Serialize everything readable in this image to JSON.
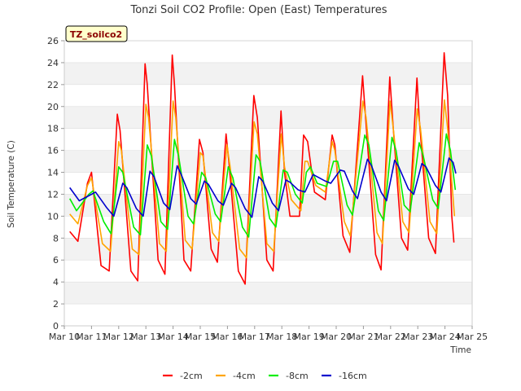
{
  "chart_data": {
    "type": "line",
    "title": "Tonzi Soil CO2 Profile: Open (East) Temperatures",
    "xlabel": "Time",
    "ylabel": "Soil Temperature (C)",
    "badge": "TZ_soilco2",
    "xlim": [
      10,
      25
    ],
    "ylim": [
      0,
      26
    ],
    "x_ticks": [
      10,
      11,
      12,
      13,
      14,
      15,
      16,
      17,
      18,
      19,
      20,
      21,
      22,
      23,
      24,
      25
    ],
    "x_tick_labels": [
      "Mar 10",
      "Mar 11",
      "Mar 12",
      "Mar 13",
      "Mar 14",
      "Mar 15",
      "Mar 16",
      "Mar 17",
      "Mar 18",
      "Mar 19",
      "Mar 20",
      "Mar 21",
      "Mar 22",
      "Mar 23",
      "Mar 24",
      "Mar 25"
    ],
    "y_ticks": [
      0,
      2,
      4,
      6,
      8,
      10,
      12,
      14,
      16,
      18,
      20,
      22,
      24,
      26
    ],
    "grid": "horizontal alternating bands",
    "legend_position": "bottom",
    "series": [
      {
        "name": "-2cm",
        "color": "#ff0000",
        "points": [
          [
            10.2,
            8.6
          ],
          [
            10.5,
            7.7
          ],
          [
            10.85,
            13.0
          ],
          [
            11.0,
            14.0
          ],
          [
            11.35,
            5.5
          ],
          [
            11.65,
            5.0
          ],
          [
            11.95,
            19.3
          ],
          [
            12.05,
            17.8
          ],
          [
            12.45,
            5.0
          ],
          [
            12.7,
            4.1
          ],
          [
            12.97,
            23.9
          ],
          [
            13.05,
            22.0
          ],
          [
            13.45,
            6.0
          ],
          [
            13.7,
            4.7
          ],
          [
            13.97,
            24.7
          ],
          [
            14.05,
            22.0
          ],
          [
            14.4,
            6.0
          ],
          [
            14.65,
            5.0
          ],
          [
            14.97,
            17.0
          ],
          [
            15.1,
            15.8
          ],
          [
            15.4,
            7.0
          ],
          [
            15.63,
            5.8
          ],
          [
            15.95,
            17.5
          ],
          [
            16.05,
            15.0
          ],
          [
            16.4,
            5.0
          ],
          [
            16.65,
            3.8
          ],
          [
            16.97,
            21.0
          ],
          [
            17.1,
            19.0
          ],
          [
            17.45,
            6.0
          ],
          [
            17.68,
            5.0
          ],
          [
            17.97,
            19.6
          ],
          [
            18.1,
            14.0
          ],
          [
            18.3,
            10.0
          ],
          [
            18.65,
            10.0
          ],
          [
            18.8,
            17.4
          ],
          [
            18.95,
            16.8
          ],
          [
            19.2,
            12.2
          ],
          [
            19.6,
            11.5
          ],
          [
            19.85,
            17.4
          ],
          [
            19.95,
            16.5
          ],
          [
            20.25,
            8.2
          ],
          [
            20.5,
            6.7
          ],
          [
            20.97,
            22.8
          ],
          [
            21.05,
            20.0
          ],
          [
            21.45,
            6.5
          ],
          [
            21.65,
            5.1
          ],
          [
            21.97,
            22.7
          ],
          [
            22.1,
            18.0
          ],
          [
            22.4,
            8.0
          ],
          [
            22.63,
            6.9
          ],
          [
            22.97,
            22.6
          ],
          [
            23.05,
            19.0
          ],
          [
            23.4,
            8.0
          ],
          [
            23.65,
            6.6
          ],
          [
            23.97,
            24.9
          ],
          [
            24.1,
            21.0
          ],
          [
            24.25,
            10.0
          ],
          [
            24.33,
            7.6
          ]
        ]
      },
      {
        "name": "-4cm",
        "color": "#ffa500",
        "points": [
          [
            10.2,
            10.2
          ],
          [
            10.5,
            9.3
          ],
          [
            10.85,
            12.8
          ],
          [
            11.0,
            13.5
          ],
          [
            11.4,
            7.5
          ],
          [
            11.7,
            6.8
          ],
          [
            12.0,
            16.8
          ],
          [
            12.1,
            16.0
          ],
          [
            12.5,
            7.0
          ],
          [
            12.75,
            6.5
          ],
          [
            13.0,
            20.2
          ],
          [
            13.1,
            19.0
          ],
          [
            13.5,
            7.5
          ],
          [
            13.75,
            6.8
          ],
          [
            14.0,
            20.5
          ],
          [
            14.1,
            19.0
          ],
          [
            14.45,
            7.8
          ],
          [
            14.7,
            7.0
          ],
          [
            15.0,
            15.8
          ],
          [
            15.1,
            15.5
          ],
          [
            15.45,
            8.5
          ],
          [
            15.68,
            7.7
          ],
          [
            15.98,
            16.5
          ],
          [
            16.1,
            14.5
          ],
          [
            16.45,
            7.0
          ],
          [
            16.7,
            6.2
          ],
          [
            16.98,
            18.6
          ],
          [
            17.1,
            17.5
          ],
          [
            17.45,
            7.5
          ],
          [
            17.7,
            6.8
          ],
          [
            17.98,
            17.5
          ],
          [
            18.1,
            14.5
          ],
          [
            18.35,
            11.5
          ],
          [
            18.7,
            10.5
          ],
          [
            18.85,
            15.0
          ],
          [
            18.95,
            15.0
          ],
          [
            19.25,
            12.8
          ],
          [
            19.6,
            12.2
          ],
          [
            19.85,
            16.8
          ],
          [
            19.95,
            16.0
          ],
          [
            20.3,
            9.5
          ],
          [
            20.52,
            8.2
          ],
          [
            20.98,
            20.5
          ],
          [
            21.1,
            19.0
          ],
          [
            21.5,
            8.5
          ],
          [
            21.7,
            7.5
          ],
          [
            21.98,
            20.5
          ],
          [
            22.1,
            18.0
          ],
          [
            22.45,
            9.5
          ],
          [
            22.68,
            8.5
          ],
          [
            22.98,
            19.8
          ],
          [
            23.1,
            18.0
          ],
          [
            23.45,
            9.5
          ],
          [
            23.7,
            8.4
          ],
          [
            23.98,
            20.6
          ],
          [
            24.1,
            18.0
          ],
          [
            24.35,
            10.0
          ]
        ]
      },
      {
        "name": "-8cm",
        "color": "#00ee00",
        "points": [
          [
            10.2,
            11.6
          ],
          [
            10.45,
            10.5
          ],
          [
            10.9,
            12.0
          ],
          [
            11.05,
            12.3
          ],
          [
            11.45,
            9.5
          ],
          [
            11.72,
            8.4
          ],
          [
            12.0,
            14.5
          ],
          [
            12.15,
            14.0
          ],
          [
            12.55,
            9.0
          ],
          [
            12.8,
            8.3
          ],
          [
            13.05,
            16.5
          ],
          [
            13.2,
            15.5
          ],
          [
            13.55,
            9.5
          ],
          [
            13.8,
            8.8
          ],
          [
            14.05,
            17.0
          ],
          [
            14.2,
            15.5
          ],
          [
            14.55,
            10.0
          ],
          [
            14.75,
            9.3
          ],
          [
            15.05,
            14.0
          ],
          [
            15.2,
            13.5
          ],
          [
            15.55,
            10.2
          ],
          [
            15.75,
            9.5
          ],
          [
            16.03,
            14.5
          ],
          [
            16.2,
            13.5
          ],
          [
            16.55,
            9.0
          ],
          [
            16.78,
            8.1
          ],
          [
            17.05,
            15.6
          ],
          [
            17.2,
            15.0
          ],
          [
            17.55,
            9.8
          ],
          [
            17.78,
            9.0
          ],
          [
            18.05,
            14.2
          ],
          [
            18.2,
            14.0
          ],
          [
            18.5,
            12.0
          ],
          [
            18.75,
            11.2
          ],
          [
            18.9,
            14.0
          ],
          [
            19.05,
            14.5
          ],
          [
            19.3,
            13.0
          ],
          [
            19.65,
            12.7
          ],
          [
            19.9,
            15.0
          ],
          [
            20.05,
            15.0
          ],
          [
            20.4,
            11.0
          ],
          [
            20.6,
            10.1
          ],
          [
            21.05,
            17.4
          ],
          [
            21.2,
            16.5
          ],
          [
            21.55,
            10.5
          ],
          [
            21.75,
            9.6
          ],
          [
            22.05,
            17.2
          ],
          [
            22.2,
            16.0
          ],
          [
            22.5,
            11.0
          ],
          [
            22.72,
            10.4
          ],
          [
            23.05,
            16.7
          ],
          [
            23.2,
            15.5
          ],
          [
            23.55,
            11.5
          ],
          [
            23.75,
            10.7
          ],
          [
            24.05,
            17.5
          ],
          [
            24.2,
            16.0
          ],
          [
            24.38,
            12.4
          ]
        ]
      },
      {
        "name": "-16cm",
        "color": "#0000cd",
        "points": [
          [
            10.2,
            12.6
          ],
          [
            10.55,
            11.4
          ],
          [
            11.0,
            12.0
          ],
          [
            11.15,
            12.2
          ],
          [
            11.55,
            10.8
          ],
          [
            11.82,
            10.0
          ],
          [
            12.15,
            13.0
          ],
          [
            12.3,
            12.6
          ],
          [
            12.65,
            10.7
          ],
          [
            12.9,
            10.0
          ],
          [
            13.15,
            14.1
          ],
          [
            13.3,
            13.6
          ],
          [
            13.65,
            11.2
          ],
          [
            13.88,
            10.6
          ],
          [
            14.15,
            14.6
          ],
          [
            14.3,
            13.8
          ],
          [
            14.65,
            11.6
          ],
          [
            14.85,
            11.1
          ],
          [
            15.15,
            13.2
          ],
          [
            15.3,
            12.9
          ],
          [
            15.65,
            11.4
          ],
          [
            15.85,
            11.0
          ],
          [
            16.15,
            13.0
          ],
          [
            16.3,
            12.6
          ],
          [
            16.65,
            10.7
          ],
          [
            16.9,
            9.9
          ],
          [
            17.15,
            13.6
          ],
          [
            17.3,
            13.2
          ],
          [
            17.65,
            11.2
          ],
          [
            17.88,
            10.5
          ],
          [
            18.15,
            13.3
          ],
          [
            18.3,
            13.1
          ],
          [
            18.6,
            12.4
          ],
          [
            18.85,
            12.2
          ],
          [
            19.15,
            13.8
          ],
          [
            19.3,
            13.6
          ],
          [
            19.6,
            13.2
          ],
          [
            19.8,
            13.0
          ],
          [
            20.15,
            14.2
          ],
          [
            20.3,
            14.1
          ],
          [
            20.6,
            12.3
          ],
          [
            20.78,
            11.6
          ],
          [
            21.15,
            15.2
          ],
          [
            21.3,
            14.6
          ],
          [
            21.65,
            12.2
          ],
          [
            21.85,
            11.4
          ],
          [
            22.15,
            15.1
          ],
          [
            22.3,
            14.5
          ],
          [
            22.65,
            12.5
          ],
          [
            22.85,
            12.0
          ],
          [
            23.15,
            14.8
          ],
          [
            23.3,
            14.5
          ],
          [
            23.65,
            12.8
          ],
          [
            23.85,
            12.2
          ],
          [
            24.15,
            15.3
          ],
          [
            24.3,
            14.9
          ],
          [
            24.4,
            13.9
          ]
        ]
      }
    ]
  }
}
